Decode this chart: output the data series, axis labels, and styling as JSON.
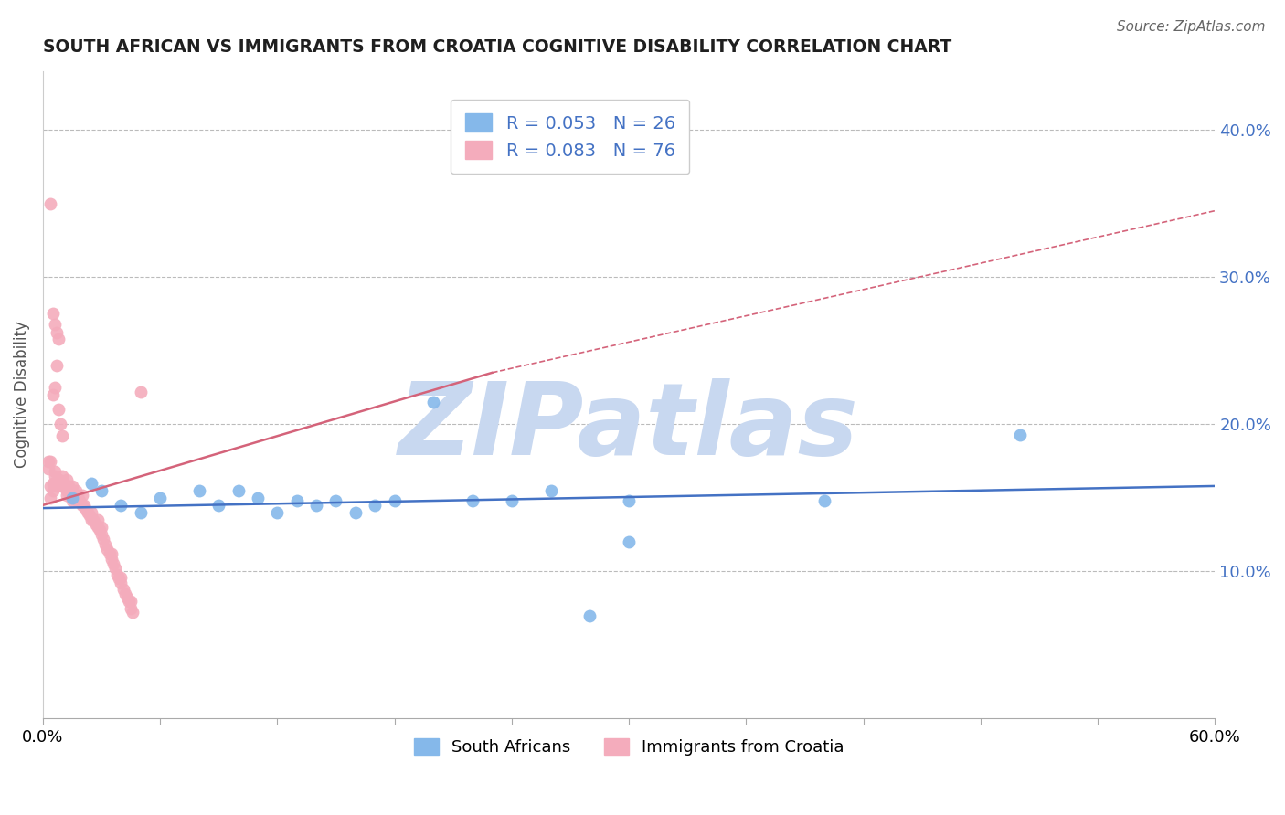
{
  "title": "SOUTH AFRICAN VS IMMIGRANTS FROM CROATIA COGNITIVE DISABILITY CORRELATION CHART",
  "source": "Source: ZipAtlas.com",
  "ylabel": "Cognitive Disability",
  "xlim": [
    0.0,
    0.6
  ],
  "ylim": [
    0.0,
    0.44
  ],
  "xticks": [
    0.0,
    0.06,
    0.12,
    0.18,
    0.24,
    0.3,
    0.36,
    0.42,
    0.48,
    0.54,
    0.6
  ],
  "yticks_right": [
    0.1,
    0.2,
    0.3,
    0.4
  ],
  "ytick_labels_right": [
    "10.0%",
    "20.0%",
    "30.0%",
    "40.0%"
  ],
  "xtick_labels": [
    "0.0%",
    "",
    "",
    "",
    "",
    "",
    "",
    "",
    "",
    "",
    "60.0%"
  ],
  "blue_color": "#85B8EA",
  "pink_color": "#F4ACBC",
  "blue_line_color": "#4472C4",
  "pink_line_color": "#D4637A",
  "gray_dash_color": "#BBBBBB",
  "watermark": "ZIPatlas",
  "watermark_color": "#C8D8F0",
  "south_africans_label": "South Africans",
  "croatia_label": "Immigrants from Croatia",
  "blue_scatter_x": [
    0.015,
    0.025,
    0.03,
    0.04,
    0.05,
    0.06,
    0.08,
    0.09,
    0.1,
    0.11,
    0.12,
    0.13,
    0.14,
    0.15,
    0.16,
    0.17,
    0.18,
    0.2,
    0.22,
    0.24,
    0.26,
    0.28,
    0.3,
    0.5,
    0.3,
    0.4
  ],
  "blue_scatter_y": [
    0.15,
    0.16,
    0.155,
    0.145,
    0.14,
    0.15,
    0.155,
    0.145,
    0.155,
    0.15,
    0.14,
    0.148,
    0.145,
    0.148,
    0.14,
    0.145,
    0.148,
    0.215,
    0.148,
    0.148,
    0.155,
    0.07,
    0.148,
    0.193,
    0.12,
    0.148
  ],
  "pink_scatter_x": [
    0.004,
    0.004,
    0.005,
    0.005,
    0.006,
    0.007,
    0.008,
    0.009,
    0.01,
    0.01,
    0.011,
    0.012,
    0.012,
    0.013,
    0.014,
    0.015,
    0.015,
    0.016,
    0.017,
    0.018,
    0.018,
    0.019,
    0.02,
    0.02,
    0.021,
    0.022,
    0.023,
    0.024,
    0.025,
    0.025,
    0.026,
    0.027,
    0.028,
    0.028,
    0.029,
    0.03,
    0.03,
    0.031,
    0.032,
    0.033,
    0.034,
    0.035,
    0.035,
    0.036,
    0.037,
    0.038,
    0.039,
    0.04,
    0.04,
    0.041,
    0.042,
    0.043,
    0.044,
    0.045,
    0.045,
    0.046,
    0.003,
    0.004,
    0.005,
    0.006,
    0.007,
    0.008,
    0.009,
    0.01,
    0.004,
    0.005,
    0.006,
    0.007,
    0.008,
    0.05,
    0.003,
    0.006,
    0.008,
    0.01,
    0.012,
    0.015
  ],
  "pink_scatter_y": [
    0.15,
    0.158,
    0.155,
    0.16,
    0.165,
    0.158,
    0.162,
    0.16,
    0.158,
    0.165,
    0.16,
    0.155,
    0.162,
    0.158,
    0.155,
    0.152,
    0.158,
    0.15,
    0.155,
    0.148,
    0.152,
    0.148,
    0.145,
    0.152,
    0.145,
    0.142,
    0.14,
    0.138,
    0.135,
    0.14,
    0.135,
    0.132,
    0.13,
    0.135,
    0.128,
    0.125,
    0.13,
    0.122,
    0.118,
    0.115,
    0.112,
    0.108,
    0.112,
    0.105,
    0.102,
    0.098,
    0.095,
    0.092,
    0.096,
    0.088,
    0.085,
    0.082,
    0.08,
    0.075,
    0.08,
    0.072,
    0.17,
    0.175,
    0.22,
    0.225,
    0.24,
    0.21,
    0.2,
    0.192,
    0.35,
    0.275,
    0.268,
    0.262,
    0.258,
    0.222,
    0.175,
    0.168,
    0.162,
    0.158,
    0.152,
    0.148
  ]
}
